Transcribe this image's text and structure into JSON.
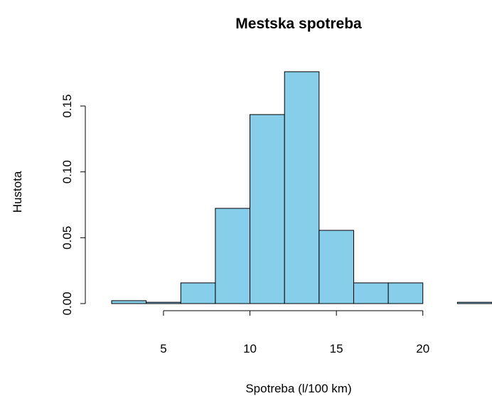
{
  "chart_data": {
    "type": "histogram",
    "title": "Mestska spotreba",
    "x_label": "Spotreba (l/100 km)",
    "y_label": "Hustota",
    "bins": [
      2,
      4,
      6,
      8,
      10,
      12,
      14,
      16,
      18,
      20,
      22,
      24
    ],
    "values": [
      0.0022,
      0.001,
      0.0157,
      0.0723,
      0.1435,
      0.176,
      0.0556,
      0.0157,
      0.0157,
      0,
      0.001
    ],
    "color": "#87ceeb",
    "xlim": [
      2,
      24
    ],
    "xticks": [
      5,
      10,
      15,
      20
    ],
    "ylim": [
      0,
      0.18
    ],
    "yticks": [
      {
        "value": 0,
        "label": "0.00"
      },
      {
        "value": 0.05,
        "label": "0.05"
      },
      {
        "value": 0.1,
        "label": "0.10"
      },
      {
        "value": 0.15,
        "label": "0.15"
      }
    ]
  }
}
